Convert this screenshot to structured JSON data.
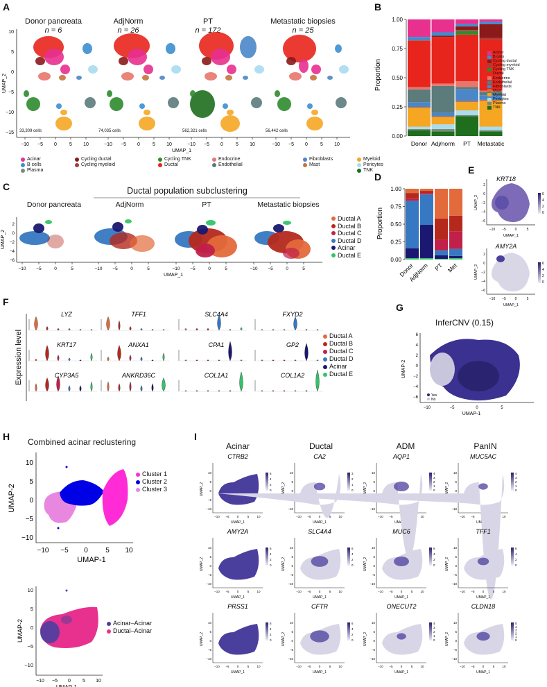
{
  "panels": {
    "A": "A",
    "B": "B",
    "C": "C",
    "D": "D",
    "E": "E",
    "F": "F",
    "G": "G",
    "H": "H",
    "I": "I"
  },
  "colors": {
    "acinar": "#e8308f",
    "b_cells": "#3a8fd0",
    "plasma": "#7b8b78",
    "cycling_ductal": "#8b1a1a",
    "cycling_myeloid": "#a04040",
    "cycling_tnk": "#2e8b2e",
    "ductal": "#e8251c",
    "endocrine": "#e8766c",
    "endothelial": "#5c7b7b",
    "fibroblasts": "#4a86c8",
    "mast": "#c8733b",
    "myeloid": "#f5a623",
    "pericytes": "#a8dcef",
    "tnk": "#1e6e1e",
    "purple": "#3f2f8f",
    "lightpurple": "#cbc4e2",
    "ductalA": "#e36a3b",
    "ductalB": "#b5291c",
    "ductalC": "#c0204a",
    "ductalD": "#3778c2",
    "acinar2": "#1a1870",
    "ductalE": "#33c46a",
    "cl1": "#ff2bd6",
    "cl2": "#0000e6",
    "cl3": "#e887e0",
    "aa": "#4b3f9e",
    "da": "#e8308f"
  },
  "panelA": {
    "plots": [
      {
        "title": "Donor pancreata",
        "n": "n = 6",
        "cells": "33,309 cells"
      },
      {
        "title": "AdjNorm",
        "n": "n = 26",
        "cells": "74,035 cells"
      },
      {
        "title": "PT",
        "n": "n = 172",
        "cells": "562,321 cells"
      },
      {
        "title": "Metastatic biopsies",
        "n": "n = 25",
        "cells": "56,442 cells"
      }
    ],
    "ylabel": "UMAP_2",
    "xlabel": "UMAP_1",
    "yticks": [
      "10",
      "5",
      "0",
      "−5",
      "−10",
      "−15"
    ],
    "xticks": [
      "−10",
      "−5",
      "0",
      "5",
      "10"
    ],
    "legend": [
      {
        "label": "Acinar",
        "color": "#e8308f"
      },
      {
        "label": "Cycling ductal",
        "color": "#8b1a1a"
      },
      {
        "label": "Cycling TNK",
        "color": "#2e8b2e"
      },
      {
        "label": "Endocrine",
        "color": "#e8766c"
      },
      {
        "label": "Fibroblasts",
        "color": "#4a86c8"
      },
      {
        "label": "Myeloid",
        "color": "#f5a623"
      },
      {
        "label": "B cells",
        "color": "#3a8fd0"
      },
      {
        "label": "Cycling myeloid",
        "color": "#a04040"
      },
      {
        "label": "Ductal",
        "color": "#e8251c"
      },
      {
        "label": "Endothelial",
        "color": "#5c7b7b"
      },
      {
        "label": "Mast",
        "color": "#c8733b"
      },
      {
        "label": "Pericytes",
        "color": "#a8dcef"
      },
      {
        "label": "Plasma",
        "color": "#7b8b78"
      },
      {
        "label": "TNK",
        "color": "#1e6e1e"
      }
    ]
  },
  "panelC": {
    "title": "Ductal population subclustering",
    "plots": [
      "Donor pancreata",
      "AdjNorm",
      "PT",
      "Metastatic biopsies"
    ],
    "ylabel": "UMAP_2",
    "xlabel": "UMAP_1",
    "yticks": [
      "2",
      "0",
      "−2",
      "−4",
      "−6"
    ],
    "xticks": [
      "−10",
      "−5",
      "0",
      "5"
    ],
    "legend": [
      {
        "label": "Ductal A",
        "color": "#e36a3b"
      },
      {
        "label": "Ductal B",
        "color": "#b5291c"
      },
      {
        "label": "Ductal C",
        "color": "#c0204a"
      },
      {
        "label": "Ductal D",
        "color": "#3778c2"
      },
      {
        "label": "Acinar",
        "color": "#1a1870"
      },
      {
        "label": "Ductal E",
        "color": "#33c46a"
      }
    ]
  },
  "panelF": {
    "ylabel": "Expression level",
    "genes": [
      "LYZ",
      "TFF1",
      "SLC4A4",
      "FXYD2",
      "KRT17",
      "ANXA1",
      "CPA1",
      "GP2",
      "CYP3A5",
      "ANKRD36C",
      "COL1A1",
      "COL1A2"
    ],
    "legend": [
      {
        "label": "Ductal A",
        "color": "#e36a3b"
      },
      {
        "label": "Ductal B",
        "color": "#b5291c"
      },
      {
        "label": "Ductal C",
        "color": "#c0204a"
      },
      {
        "label": "Ductal D",
        "color": "#3778c2"
      },
      {
        "label": "Acinar",
        "color": "#1a1870"
      },
      {
        "label": "Ductal E",
        "color": "#33c46a"
      }
    ]
  },
  "panelE": {
    "genes": [
      "KRT18",
      "AMY2A"
    ],
    "ylabel": "UMAP_2",
    "xlabel": "UMAP_1",
    "yticks": [
      "2",
      "0",
      "−2",
      "−4",
      "−6"
    ],
    "xticks": [
      "−10",
      "−5",
      "0",
      "5"
    ],
    "scale": [
      "6",
      "4",
      "2",
      "0"
    ]
  },
  "panelG": {
    "title": "InferCNV (0.15)",
    "ylabel": "UMAP-2",
    "xlabel": "UMAP-1",
    "yticks": [
      "6",
      "4",
      "2",
      "0",
      "−2",
      "−4",
      "−6"
    ],
    "xticks": [
      "−10",
      "−5",
      "0",
      "5"
    ],
    "legend": [
      {
        "label": "Yes",
        "color": "#2a2470"
      },
      {
        "label": "No",
        "color": "#c8c6dd"
      }
    ]
  },
  "panelH": {
    "title": "Combined acinar reclustering",
    "ylabel": "UMAP-2",
    "xlabel": "UMAP-1",
    "yticks": [
      "10",
      "5",
      "0",
      "−5",
      "−10"
    ],
    "xticks": [
      "−10",
      "−5",
      "0",
      "5",
      "10"
    ],
    "legend1": [
      {
        "label": "Cluster 1",
        "color": "#ff2bd6"
      },
      {
        "label": "Cluster 2",
        "color": "#0000e6"
      },
      {
        "label": "Cluster 3",
        "color": "#e887e0"
      }
    ],
    "legend2": [
      {
        "label": "Acinar–Acinar",
        "color": "#4b3f9e"
      },
      {
        "label": "Ductal–Acinar",
        "color": "#e8308f"
      }
    ]
  },
  "panelI": {
    "columns": [
      "Acinar",
      "Ductal",
      "ADM",
      "PanIN"
    ],
    "genes": [
      [
        "CTRB2",
        "CA2",
        "AQP1",
        "MUC5AC"
      ],
      [
        "AMY2A",
        "SLC4A4",
        "MUC6",
        "TFF1"
      ],
      [
        "PRSS1",
        "CFTR",
        "ONECUT2",
        "CLDN18"
      ]
    ],
    "scales": [
      [
        [
          "6",
          "4",
          "2",
          "0"
        ],
        [
          "3",
          "2",
          "1",
          "0"
        ],
        [
          "4",
          "3",
          "2",
          "1",
          "0"
        ],
        [
          "4",
          "3",
          "2",
          "1",
          "0"
        ]
      ],
      [
        [
          "6",
          "4",
          "2",
          "0"
        ],
        [
          "6",
          "4",
          "2",
          "0"
        ],
        [
          "6",
          "4",
          "2",
          "0"
        ],
        [
          "6",
          "4",
          "2",
          "0"
        ]
      ],
      [
        [
          "6",
          "4",
          "2",
          "0"
        ],
        [
          "6",
          "4",
          "2",
          "0"
        ],
        [
          "4",
          "3",
          "2",
          "1",
          "0"
        ],
        [
          "5",
          "4",
          "3",
          "2",
          "1",
          "0"
        ]
      ]
    ],
    "ylabel": "UMAP_2",
    "xlabel": "UMAP_1",
    "yticks": [
      "10",
      "5",
      "0",
      "−5",
      "−10"
    ],
    "xticks": [
      "−10",
      "−5",
      "0",
      "5",
      "10"
    ]
  },
  "chart_data": [
    {
      "type": "bar",
      "id": "B",
      "stacked": true,
      "categories": [
        "Donor",
        "Adj/norm",
        "PT",
        "Metastatic"
      ],
      "ylabel": "Proportion",
      "ylim": [
        0,
        1
      ],
      "yticks": [
        "0.00",
        "0.25",
        "0.50",
        "0.75",
        "1.00"
      ],
      "series": [
        {
          "name": "TNK",
          "color": "#1e6e1e",
          "values": [
            0.05,
            0.04,
            0.17,
            0.04
          ]
        },
        {
          "name": "Plasma",
          "color": "#7b8b78",
          "values": [
            0.01,
            0.02,
            0.01,
            0.01
          ]
        },
        {
          "name": "Pericytes",
          "color": "#a8dcef",
          "values": [
            0.02,
            0.04,
            0.04,
            0.03
          ]
        },
        {
          "name": "Myeloid",
          "color": "#f5a623",
          "values": [
            0.16,
            0.06,
            0.07,
            0.22
          ]
        },
        {
          "name": "Mast",
          "color": "#c8733b",
          "values": [
            0.01,
            0.01,
            0.01,
            0.01
          ]
        },
        {
          "name": "Fibroblasts",
          "color": "#4a86c8",
          "values": [
            0.04,
            0.03,
            0.1,
            0.04
          ]
        },
        {
          "name": "Endothelial",
          "color": "#5c7b7b",
          "values": [
            0.11,
            0.23,
            0.02,
            0.03
          ]
        },
        {
          "name": "Endocrine",
          "color": "#e8766c",
          "values": [
            0.02,
            0.02,
            0.05,
            0.01
          ]
        },
        {
          "name": "Ductal",
          "color": "#e8251c",
          "values": [
            0.4,
            0.4,
            0.4,
            0.44
          ]
        },
        {
          "name": "Cycling TNK",
          "color": "#2e8b2e",
          "values": [
            0.0,
            0.0,
            0.03,
            0.0
          ]
        },
        {
          "name": "Cycling myeloid",
          "color": "#a04040",
          "values": [
            0.0,
            0.0,
            0.01,
            0.01
          ]
        },
        {
          "name": "Cycling ductal",
          "color": "#8b1a1a",
          "values": [
            0.0,
            0.01,
            0.03,
            0.12
          ]
        },
        {
          "name": "B cells",
          "color": "#3a8fd0",
          "values": [
            0.03,
            0.03,
            0.02,
            0.02
          ]
        },
        {
          "name": "Acinar",
          "color": "#e8308f",
          "values": [
            0.15,
            0.11,
            0.04,
            0.02
          ]
        }
      ]
    },
    {
      "type": "bar",
      "id": "D",
      "stacked": true,
      "categories": [
        "Donor",
        "AdjNorm",
        "PT",
        "Met"
      ],
      "ylabel": "Proportion",
      "ylim": [
        0,
        1
      ],
      "yticks": [
        "0.00",
        "0.25",
        "0.50",
        "0.75",
        "1.00"
      ],
      "series": [
        {
          "name": "Ductal E",
          "color": "#33c46a",
          "values": [
            0.02,
            0.02,
            0.01,
            0.02
          ]
        },
        {
          "name": "Acinar",
          "color": "#1a1870",
          "values": [
            0.14,
            0.47,
            0.05,
            0.03
          ]
        },
        {
          "name": "Ductal D",
          "color": "#3778c2",
          "values": [
            0.67,
            0.43,
            0.07,
            0.1
          ]
        },
        {
          "name": "Ductal C",
          "color": "#c0204a",
          "values": [
            0.03,
            0.02,
            0.15,
            0.25
          ]
        },
        {
          "name": "Ductal B",
          "color": "#b5291c",
          "values": [
            0.08,
            0.03,
            0.3,
            0.22
          ]
        },
        {
          "name": "Ductal A",
          "color": "#e36a3b",
          "values": [
            0.06,
            0.03,
            0.42,
            0.38
          ]
        }
      ]
    }
  ]
}
